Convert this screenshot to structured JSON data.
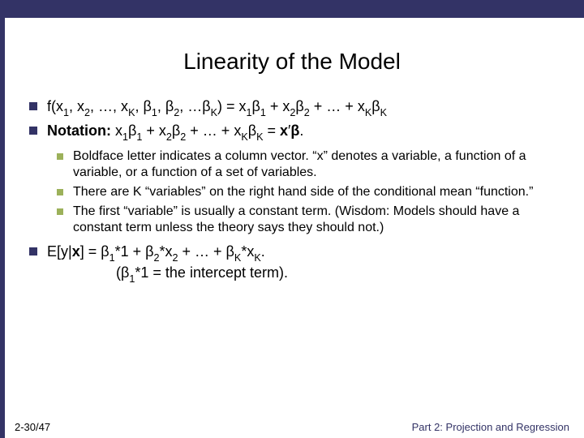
{
  "colors": {
    "header_bar": "#333366",
    "bullet_primary": "#333366",
    "bullet_secondary": "#9cb15a",
    "background": "#ffffff",
    "footer_right": "#333366"
  },
  "typography": {
    "title_fontsize": 28,
    "body_fontsize": 18,
    "sub_fontsize": 16,
    "footer_fontsize": 13,
    "family": "Verdana"
  },
  "title": "Linearity of the Model",
  "bullets": [
    {
      "html": "f(x<span class='sub'>1</span>, x<span class='sub'>2</span>, …, x<span class='sub'>K</span>, β<span class='sub'>1</span>, β<span class='sub'>2</span>, …β<span class='sub'>K</span>) = x<span class='sub'>1</span>β<span class='sub'>1</span>  + x<span class='sub'>2</span>β<span class='sub'>2</span> + … + x<span class='sub'>K</span>β<span class='sub'>K</span>"
    },
    {
      "html": "<span class='bold'>Notation:</span> x<span class='sub'>1</span>β<span class='sub'>1</span>  + x<span class='sub'>2</span>β<span class='sub'>2</span> + … + x<span class='sub'>K</span>β<span class='sub'>K</span>  =  <span class='bold'>x</span>′<span class='bold'>β</span>.",
      "subs": [
        "Boldface letter indicates a column vector.  “x” denotes a variable, a function of a variable, or a function of a set of variables.",
        "There are K “variables” on the right hand side of the conditional mean “function.”",
        "The first “variable” is usually a constant term.  (Wisdom: Models should have a constant term unless the theory says they should not.)"
      ]
    },
    {
      "html": "E[y|<span class='bold'>x</span>]  =  β<span class='sub'>1</span>*1 + β<span class='sub'>2</span>*x<span class='sub'>2</span> + … + β<span class='sub'>K</span>*x<span class='sub'>K</span>.<br>&nbsp;&nbsp;&nbsp;&nbsp;&nbsp;&nbsp;&nbsp;&nbsp;&nbsp;&nbsp;&nbsp;&nbsp;&nbsp;&nbsp;&nbsp;&nbsp;&nbsp;(β<span class='sub'>1</span>*1 = the intercept term)."
    }
  ],
  "footer": {
    "left": "2-30/47",
    "right": "Part 2: Projection and Regression"
  }
}
